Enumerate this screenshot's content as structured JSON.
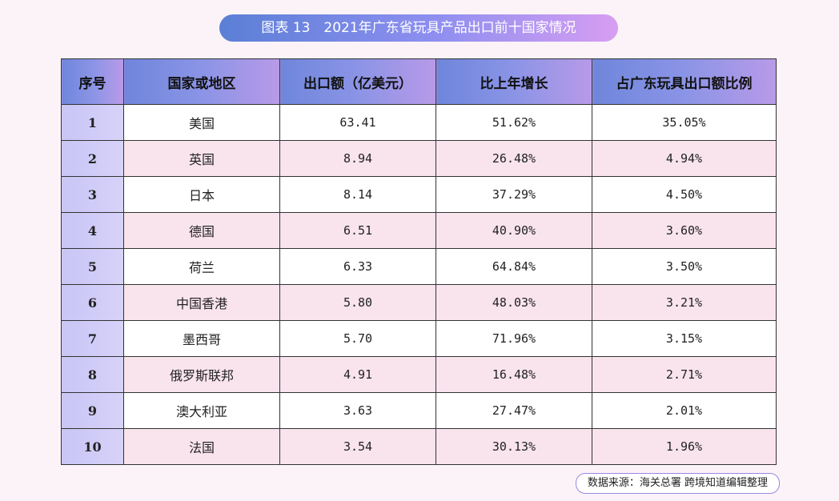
{
  "title": "图表 13　2021年广东省玩具产品出口前十国家情况",
  "table": {
    "headers": [
      "序号",
      "国家或地区",
      "出口额（亿美元）",
      "比上年增长",
      "占广东玩具出口额比例"
    ],
    "rows": [
      [
        "1",
        "美国",
        "63.41",
        "51.62%",
        "35.05%"
      ],
      [
        "2",
        "英国",
        "8.94",
        "26.48%",
        "4.94%"
      ],
      [
        "3",
        "日本",
        "8.14",
        "37.29%",
        "4.50%"
      ],
      [
        "4",
        "德国",
        "6.51",
        "40.90%",
        "3.60%"
      ],
      [
        "5",
        "荷兰",
        "6.33",
        "64.84%",
        "3.50%"
      ],
      [
        "6",
        "中国香港",
        "5.80",
        "48.03%",
        "3.21%"
      ],
      [
        "7",
        "墨西哥",
        "5.70",
        "71.96%",
        "3.15%"
      ],
      [
        "8",
        "俄罗斯联邦",
        "4.91",
        "16.48%",
        "2.71%"
      ],
      [
        "9",
        "澳大利亚",
        "3.63",
        "27.47%",
        "2.01%"
      ],
      [
        "10",
        "法国",
        "3.54",
        "30.13%",
        "1.96%"
      ]
    ]
  },
  "source": "数据来源：海关总署  跨境知道编辑整理"
}
